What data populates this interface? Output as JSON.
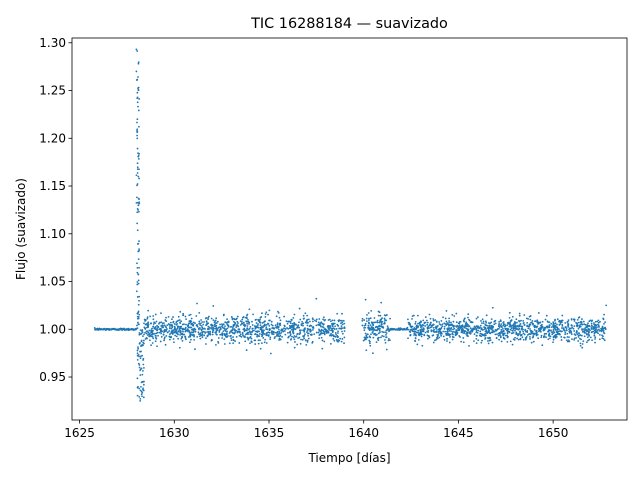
{
  "chart_data": {
    "type": "scatter",
    "title": "TIC 16288184 — suavizado",
    "xlabel": "Tiempo [días]",
    "ylabel": "Flujo (suavizado)",
    "xlim": [
      1624.6,
      1653.9
    ],
    "ylim": [
      0.905,
      1.305
    ],
    "xticks": [
      1625,
      1630,
      1635,
      1640,
      1645,
      1650
    ],
    "yticks": [
      0.95,
      1.0,
      1.05,
      1.1,
      1.15,
      1.2,
      1.25,
      1.3
    ],
    "ytick_labels": [
      "0.95",
      "1.00",
      "1.05",
      "1.10",
      "1.15",
      "1.20",
      "1.25",
      "1.30"
    ],
    "grid": false,
    "marker_color": "#1f77b4",
    "series": [
      {
        "segments": [
          {
            "x_start": 1625.8,
            "x_end": 1628.0,
            "kind": "flat",
            "center": 1.0,
            "scatter": 0.0005
          },
          {
            "x_start": 1628.0,
            "x_end": 1628.15,
            "kind": "flare",
            "peak": 1.293
          },
          {
            "x_start": 1628.05,
            "x_end": 1628.4,
            "kind": "dip",
            "min": 0.925
          },
          {
            "x_start": 1628.4,
            "x_end": 1639.0,
            "kind": "noise",
            "center": 1.0,
            "scatter": 0.007
          },
          {
            "x_start": 1639.9,
            "x_end": 1641.4,
            "kind": "noise",
            "center": 1.0,
            "scatter": 0.009
          },
          {
            "x_start": 1641.4,
            "x_end": 1642.3,
            "kind": "flat",
            "center": 1.0,
            "scatter": 0.0005
          },
          {
            "x_start": 1642.3,
            "x_end": 1652.8,
            "kind": "noise",
            "center": 1.0,
            "scatter": 0.006
          }
        ],
        "notable_points": [
          {
            "x": 1628.0,
            "y": 1.293
          },
          {
            "x": 1628.0,
            "y": 1.27
          },
          {
            "x": 1628.05,
            "y": 1.22
          },
          {
            "x": 1628.1,
            "y": 1.16
          },
          {
            "x": 1628.2,
            "y": 0.925
          },
          {
            "x": 1631.2,
            "y": 1.027
          },
          {
            "x": 1637.5,
            "y": 1.032
          },
          {
            "x": 1640.1,
            "y": 1.031
          },
          {
            "x": 1652.8,
            "y": 1.025
          }
        ]
      }
    ]
  }
}
